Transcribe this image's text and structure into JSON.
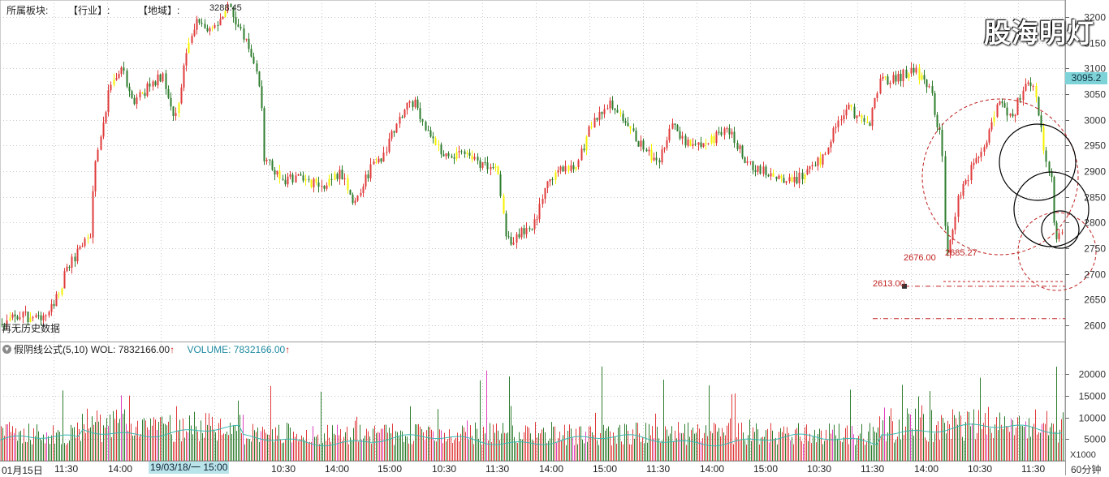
{
  "header": {
    "sector_label": "所属板块:",
    "industry_label": "【行业】:",
    "region_label": "【地域】:",
    "high_label": "3288.45"
  },
  "watermark": "股海明灯",
  "price_axis": {
    "ticks": [
      "3200",
      "3150",
      "3100",
      "3050",
      "3000",
      "2950",
      "2900",
      "2850",
      "2800",
      "2750",
      "2700",
      "2650",
      "2600"
    ],
    "current_price": "3095.2",
    "ymin": 2570,
    "ymax": 3230
  },
  "annotations": {
    "level_a": "2676.00",
    "level_b": "2685.27",
    "level_c": "2613.00"
  },
  "no_data_text": "再无历史数据",
  "volume_panel": {
    "formula_name": "假阴线公式(5,10)",
    "wol_text": "WOL: 7832166.00",
    "volume_label": "VOLUME: 7832166.00",
    "ticks": [
      "20000",
      "15000",
      "10000",
      "5000"
    ],
    "unit": "X1000",
    "vmax": 24000
  },
  "time_axis": {
    "labels": [
      "01月15日",
      "11:30",
      "14:00",
      "19/03/18/一 15:00",
      "10:30",
      "14:00",
      "15:00",
      "10:30",
      "11:30",
      "14:00",
      "15:00",
      "11:30",
      "14:00",
      "15:00",
      "10:30",
      "11:30",
      "14:00",
      "10:30",
      "11:30"
    ],
    "period": "60分钟"
  },
  "colors": {
    "up": "#e03b3b",
    "down": "#2e7d2e",
    "highlight": "#f5f200",
    "ma": "#3cb8b0",
    "annotation": "#c02020",
    "grid": "#c9c9c9"
  }
}
